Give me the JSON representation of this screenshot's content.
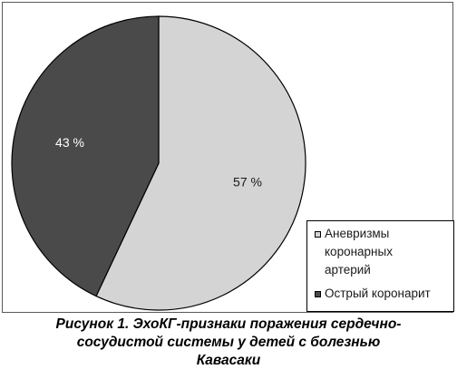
{
  "chart_data": {
    "type": "pie",
    "slices": [
      {
        "label": "Аневризмы коронарных артерий",
        "value": 57,
        "value_label": "57 %",
        "color": "#d4d4d4"
      },
      {
        "label": "Острый коронарит",
        "value": 43,
        "value_label": "43 %",
        "color": "#4a4a4a"
      }
    ],
    "legend": {
      "placement": "bottom-right",
      "items": [
        {
          "lines": [
            "Аневризмы",
            "коронарных",
            "артерий"
          ],
          "color": "#d4d4d4"
        },
        {
          "lines": [
            "Острый коронарит"
          ],
          "color": "#4a4a4a"
        }
      ]
    },
    "start_angle": "top",
    "direction": "clockwise",
    "outline_color": "#000000"
  },
  "caption": {
    "lines": [
      "Рисунок 1. ЭхоКГ-признаки поражения сердечно-",
      "сосудистой системы у детей с болезнью",
      "Кавасаки"
    ]
  }
}
